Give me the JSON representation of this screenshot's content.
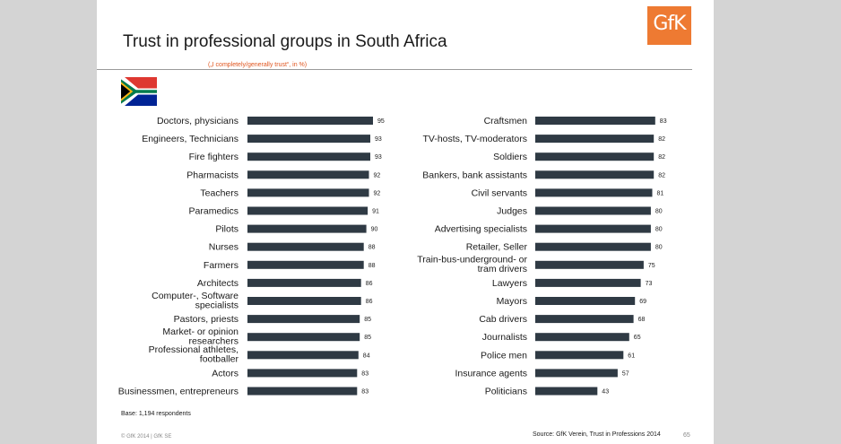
{
  "title": "Trust in professional groups in South Africa",
  "subtitle": "(„I completely/generally trust“, in %)",
  "logo_text": "GfK",
  "flag_icon": "south-africa-flag",
  "base_text": "Base: 1,194 respondents",
  "source_text": "Source: GfK Verein, Trust in Professions 2014",
  "copyright_text": "© GfK 2014 | GfK SE",
  "page_number": "65",
  "colors": {
    "bar": "#2f3a44",
    "accent": "#ee7a32",
    "subtitle": "#e0551e",
    "slide_bg": "#ffffff",
    "page_bg": "#d4d4d4"
  },
  "chart_data": [
    {
      "type": "bar",
      "orientation": "horizontal",
      "categories": [
        [
          "Doctors, physicians"
        ],
        [
          "Engineers, Technicians"
        ],
        [
          "Fire fighters"
        ],
        [
          "Pharmacists"
        ],
        [
          "Teachers"
        ],
        [
          "Paramedics"
        ],
        [
          "Pilots"
        ],
        [
          "Nurses"
        ],
        [
          "Farmers"
        ],
        [
          "Architects"
        ],
        [
          "Computer-, Software",
          "specialists"
        ],
        [
          "Pastors, priests"
        ],
        [
          "Market- or opinion",
          "researchers"
        ],
        [
          "Professional athletes,",
          "footballer"
        ],
        [
          "Actors"
        ],
        [
          "Businessmen, entrepreneurs"
        ]
      ],
      "values": [
        95,
        93,
        93,
        92,
        92,
        91,
        90,
        88,
        88,
        86,
        86,
        85,
        85,
        84,
        83,
        83
      ],
      "xlim": [
        0,
        100
      ]
    },
    {
      "type": "bar",
      "orientation": "horizontal",
      "categories": [
        [
          "Craftsmen"
        ],
        [
          "TV-hosts, TV-moderators"
        ],
        [
          "Soldiers"
        ],
        [
          "Bankers, bank assistants"
        ],
        [
          "Civil servants"
        ],
        [
          "Judges"
        ],
        [
          "Advertising specialists"
        ],
        [
          "Retailer, Seller"
        ],
        [
          "Train-bus-underground- or",
          "tram drivers"
        ],
        [
          "Lawyers"
        ],
        [
          "Mayors"
        ],
        [
          "Cab drivers"
        ],
        [
          "Journalists"
        ],
        [
          "Police men"
        ],
        [
          "Insurance agents"
        ],
        [
          "Politicians"
        ]
      ],
      "values": [
        83,
        82,
        82,
        82,
        81,
        80,
        80,
        80,
        75,
        73,
        69,
        68,
        65,
        61,
        57,
        43
      ],
      "xlim": [
        0,
        100
      ]
    }
  ]
}
